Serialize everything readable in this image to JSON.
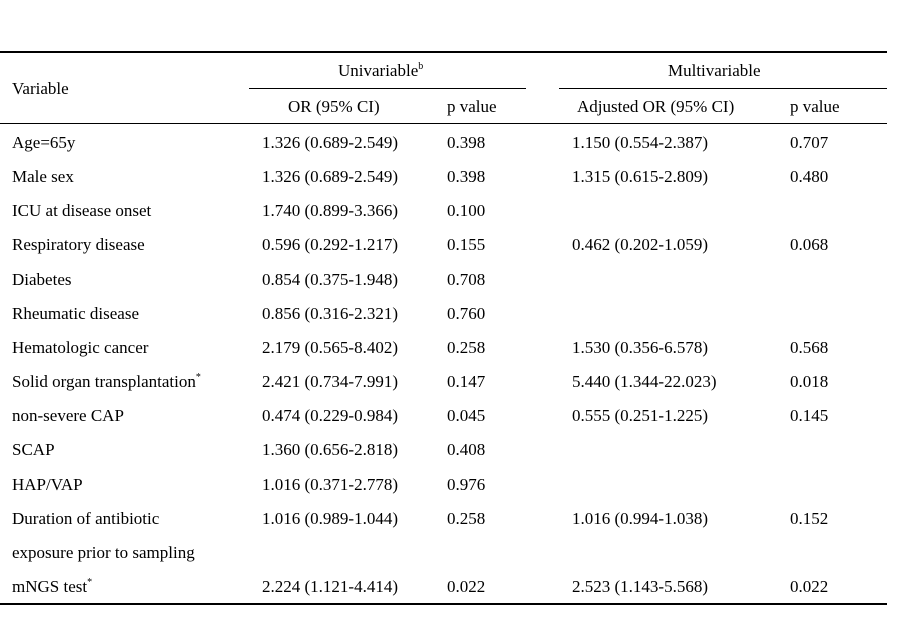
{
  "header": {
    "variable": "Variable",
    "univariable": "Univariable",
    "univariable_sup": "b",
    "multivariable": "Multivariable",
    "or_ci": "OR (95% CI)",
    "p_value_uni": "p value",
    "adjusted_or_ci": "Adjusted OR (95% CI)",
    "p_value_multi": "p value"
  },
  "rows": [
    {
      "variable": "Age=65y",
      "sup": "",
      "uni_or": "1.326 (0.689-2.549)",
      "uni_p": "0.398",
      "multi_or": "1.150 (0.554-2.387)",
      "multi_p": "0.707"
    },
    {
      "variable": "Male sex",
      "sup": "",
      "uni_or": "1.326 (0.689-2.549)",
      "uni_p": "0.398",
      "multi_or": "1.315 (0.615-2.809)",
      "multi_p": "0.480"
    },
    {
      "variable": "ICU at disease onset",
      "sup": "",
      "uni_or": "1.740 (0.899-3.366)",
      "uni_p": "0.100",
      "multi_or": "",
      "multi_p": ""
    },
    {
      "variable": "Respiratory disease",
      "sup": "",
      "uni_or": "0.596 (0.292-1.217)",
      "uni_p": "0.155",
      "multi_or": "0.462 (0.202-1.059)",
      "multi_p": "0.068"
    },
    {
      "variable": "Diabetes",
      "sup": "",
      "uni_or": "0.854 (0.375-1.948)",
      "uni_p": "0.708",
      "multi_or": "",
      "multi_p": ""
    },
    {
      "variable": "Rheumatic disease",
      "sup": "",
      "uni_or": "0.856 (0.316-2.321)",
      "uni_p": "0.760",
      "multi_or": "",
      "multi_p": ""
    },
    {
      "variable": "Hematologic cancer",
      "sup": "",
      "uni_or": "2.179 (0.565-8.402)",
      "uni_p": "0.258",
      "multi_or": "1.530 (0.356-6.578)",
      "multi_p": "0.568"
    },
    {
      "variable": "Solid organ transplantation",
      "sup": "*",
      "uni_or": "2.421 (0.734-7.991)",
      "uni_p": "0.147",
      "multi_or": "5.440 (1.344-22.023)",
      "multi_p": "0.018"
    },
    {
      "variable": "non-severe CAP",
      "sup": "",
      "uni_or": "0.474 (0.229-0.984)",
      "uni_p": "0.045",
      "multi_or": "0.555 (0.251-1.225)",
      "multi_p": "0.145"
    },
    {
      "variable": "SCAP",
      "sup": "",
      "uni_or": "1.360 (0.656-2.818)",
      "uni_p": "0.408",
      "multi_or": "",
      "multi_p": ""
    },
    {
      "variable": "HAP/VAP",
      "sup": "",
      "uni_or": "1.016 (0.371-2.778)",
      "uni_p": "0.976",
      "multi_or": "",
      "multi_p": ""
    },
    {
      "variable": "Duration of antibiotic",
      "sup": "",
      "uni_or": "1.016 (0.989-1.044)",
      "uni_p": "0.258",
      "multi_or": "1.016 (0.994-1.038)",
      "multi_p": "0.152"
    },
    {
      "variable": "exposure prior to sampling",
      "sup": "",
      "uni_or": "",
      "uni_p": "",
      "multi_or": "",
      "multi_p": ""
    },
    {
      "variable": "mNGS test",
      "sup": "*",
      "uni_or": "2.224 (1.121-4.414)",
      "uni_p": "0.022",
      "multi_or": "2.523 (1.143-5.568)",
      "multi_p": "0.022"
    }
  ]
}
